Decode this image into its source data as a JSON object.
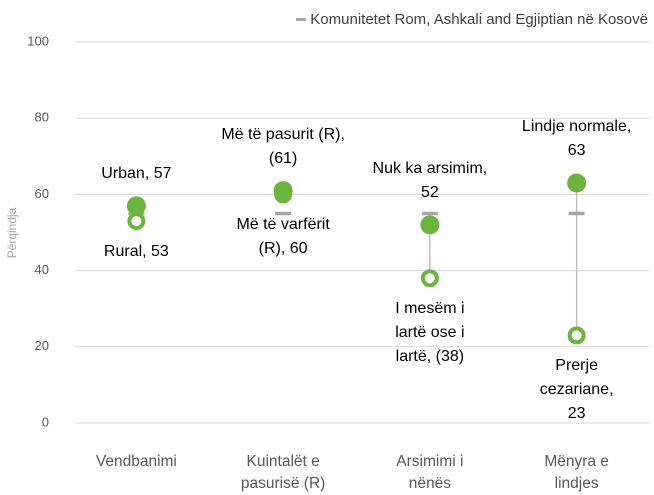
{
  "chart_data": {
    "type": "dumbbell",
    "y_label": "Përqindja",
    "categories": [
      "Vendbanimi",
      "Kuintalët e pasurisë (R)",
      "Arsimimi i nënës",
      "Mënyra e lindjes"
    ],
    "ylim": [
      0,
      100
    ],
    "yticks": [
      0,
      20,
      40,
      60,
      80,
      100
    ],
    "grid": true,
    "series": [
      {
        "name": "Komunitetet Rom, Ashkali and Egjiptian në Kosovë",
        "color": "#a6a6a6",
        "marker": "dash",
        "values": [
          55,
          55,
          55,
          55
        ]
      },
      {
        "color": "#6cb33f",
        "marker": "filled",
        "values": [
          57,
          61,
          52,
          63
        ],
        "labels": [
          "Urban, 57",
          "Më të pasurit (R), (61)",
          "Nuk ka arsimim, 52",
          "Lindje normale, 63"
        ]
      },
      {
        "color": "#6cb33f",
        "marker": "hollow",
        "values": [
          53,
          60,
          38,
          23
        ],
        "labels": [
          "Rural, 53",
          "Më të varfërit (R), 60",
          "I mesëm i lartë ose i lartë, (38)",
          "Prerje cezariane, 23"
        ]
      }
    ]
  }
}
